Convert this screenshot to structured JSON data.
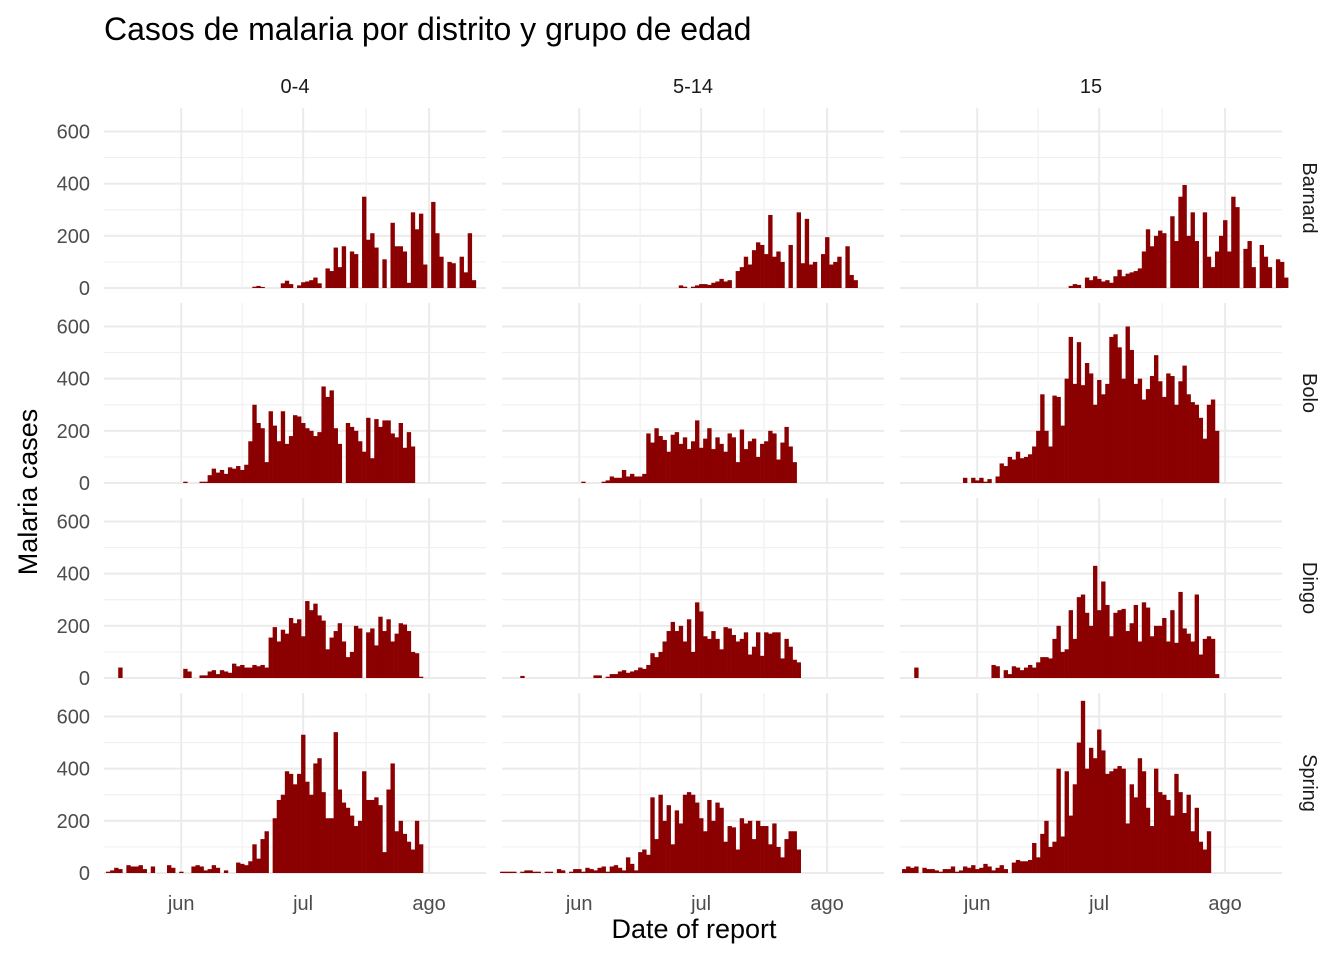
{
  "chart_data": {
    "type": "bar",
    "title": "Casos de malaria por distrito y grupo de edad",
    "xlabel": "Date of report",
    "ylabel": "Malaria cases",
    "bar_color": "#8B0000",
    "grid": true,
    "facet_columns": [
      "0-4",
      "5-14",
      "15"
    ],
    "facet_rows": [
      "Barnard",
      "Bolo",
      "Dingo",
      "Spring"
    ],
    "x_ticks": [
      {
        "label": "jun",
        "day": 17
      },
      {
        "label": "jul",
        "day": 47
      },
      {
        "label": "ago",
        "day": 78
      }
    ],
    "x_range_days": [
      -2,
      92
    ],
    "x_origin_date": "2020-05-15",
    "y_ticks": [
      0,
      200,
      400,
      600
    ],
    "ylim": [
      0,
      690
    ],
    "panels": {
      "Barnard": {
        "0-4": {
          "start": 35,
          "values": [
            5,
            8,
            4,
            0,
            0,
            0,
            0,
            18,
            28,
            15,
            0,
            10,
            22,
            25,
            30,
            40,
            18,
            0,
            75,
            65,
            155,
            80,
            160,
            0,
            140,
            130,
            0,
            350,
            185,
            210,
            155,
            0,
            110,
            0,
            250,
            160,
            160,
            140,
            20,
            290,
            225,
            285,
            90,
            0,
            330,
            210,
            120,
            0,
            100,
            95,
            0,
            120,
            60,
            210,
            30
          ]
        },
        "5-14": {
          "start": 42,
          "values": [
            10,
            5,
            0,
            5,
            10,
            15,
            15,
            12,
            20,
            25,
            35,
            25,
            30,
            0,
            65,
            80,
            120,
            90,
            145,
            175,
            165,
            130,
            280,
            120,
            140,
            100,
            0,
            165,
            0,
            290,
            95,
            265,
            90,
            100,
            0,
            130,
            195,
            90,
            100,
            120,
            0,
            160,
            50,
            30
          ]
        },
        "15": {
          "start": 40,
          "values": [
            8,
            15,
            12,
            0,
            40,
            30,
            45,
            35,
            25,
            30,
            20,
            45,
            70,
            45,
            55,
            60,
            65,
            75,
            140,
            225,
            160,
            200,
            220,
            210,
            0,
            275,
            180,
            350,
            395,
            200,
            290,
            180,
            0,
            290,
            120,
            80,
            140,
            200,
            260,
            140,
            350,
            310,
            0,
            150,
            180,
            80,
            0,
            165,
            120,
            80,
            0,
            110,
            100,
            40
          ]
        }
      },
      "Bolo": {
        "0-4": {
          "start": 18,
          "values": [
            5,
            0,
            0,
            0,
            5,
            5,
            30,
            55,
            40,
            50,
            35,
            60,
            55,
            65,
            50,
            70,
            160,
            300,
            230,
            210,
            80,
            275,
            220,
            160,
            275,
            150,
            180,
            260,
            255,
            230,
            210,
            200,
            180,
            195,
            370,
            330,
            355,
            210,
            150,
            0,
            230,
            215,
            200,
            160,
            120,
            250,
            95,
            245,
            215,
            240,
            240,
            190,
            175,
            230,
            135,
            195,
            140
          ]
        },
        "5-14": {
          "start": 18,
          "values": [
            5,
            0,
            0,
            0,
            0,
            5,
            10,
            25,
            20,
            20,
            50,
            25,
            35,
            25,
            25,
            35,
            190,
            155,
            210,
            180,
            165,
            120,
            185,
            195,
            150,
            175,
            130,
            160,
            240,
            135,
            170,
            210,
            130,
            175,
            150,
            120,
            190,
            175,
            80,
            205,
            130,
            160,
            170,
            100,
            150,
            160,
            200,
            190,
            90,
            155,
            215,
            140,
            80
          ]
        },
        "15": {
          "start": 14,
          "values": [
            20,
            0,
            20,
            10,
            20,
            5,
            15,
            0,
            25,
            75,
            65,
            100,
            90,
            120,
            95,
            100,
            110,
            140,
            200,
            340,
            200,
            140,
            335,
            330,
            220,
            400,
            560,
            380,
            540,
            375,
            460,
            420,
            300,
            395,
            340,
            380,
            560,
            570,
            520,
            400,
            600,
            510,
            380,
            400,
            320,
            360,
            410,
            490,
            390,
            330,
            420,
            410,
            300,
            390,
            450,
            340,
            310,
            300,
            250,
            170,
            300,
            320,
            200
          ]
        }
      },
      "Dingo": {
        "0-4": {
          "start": 2,
          "values": [
            40,
            0,
            0,
            0,
            0,
            0,
            0,
            0,
            0,
            0,
            0,
            0,
            0,
            0,
            0,
            0,
            35,
            25,
            0,
            0,
            10,
            10,
            25,
            30,
            15,
            30,
            25,
            20,
            55,
            45,
            50,
            40,
            40,
            50,
            45,
            50,
            40,
            155,
            195,
            140,
            185,
            170,
            230,
            210,
            225,
            160,
            295,
            260,
            285,
            240,
            220,
            110,
            155,
            180,
            210,
            140,
            80,
            100,
            200,
            190,
            0,
            175,
            190,
            125,
            235,
            180,
            225,
            140,
            170,
            210,
            205,
            180,
            100,
            95,
            5
          ]
        },
        "5-14": {
          "start": 3,
          "values": [
            8,
            0,
            0,
            0,
            0,
            0,
            0,
            0,
            0,
            0,
            0,
            0,
            0,
            0,
            0,
            0,
            0,
            0,
            10,
            10,
            0,
            5,
            15,
            15,
            25,
            30,
            20,
            25,
            30,
            40,
            35,
            50,
            95,
            80,
            100,
            140,
            180,
            215,
            180,
            200,
            140,
            225,
            100,
            290,
            255,
            160,
            150,
            180,
            150,
            110,
            195,
            190,
            165,
            140,
            150,
            175,
            90,
            120,
            175,
            85,
            175,
            170,
            175,
            175,
            75,
            150,
            120,
            70,
            60,
            0
          ]
        },
        "15": {
          "start": 2,
          "values": [
            40,
            0,
            0,
            0,
            0,
            0,
            0,
            0,
            0,
            0,
            0,
            0,
            0,
            0,
            0,
            0,
            0,
            0,
            0,
            50,
            45,
            0,
            30,
            15,
            45,
            40,
            30,
            40,
            50,
            40,
            60,
            80,
            80,
            75,
            150,
            200,
            100,
            110,
            260,
            150,
            310,
            320,
            250,
            200,
            430,
            260,
            370,
            280,
            160,
            250,
            260,
            265,
            180,
            210,
            280,
            140,
            290,
            270,
            160,
            200,
            200,
            230,
            140,
            260,
            135,
            330,
            190,
            170,
            140,
            320,
            90,
            150,
            160,
            150,
            15
          ]
        }
      },
      "Spring": {
        "0-4": {
          "start": -1,
          "values": [
            5,
            10,
            20,
            15,
            0,
            30,
            25,
            25,
            30,
            15,
            0,
            25,
            0,
            0,
            0,
            30,
            20,
            0,
            5,
            0,
            0,
            25,
            30,
            25,
            10,
            15,
            30,
            20,
            0,
            10,
            0,
            0,
            40,
            35,
            30,
            45,
            110,
            55,
            130,
            160,
            0,
            210,
            280,
            300,
            390,
            380,
            340,
            380,
            530,
            350,
            300,
            420,
            440,
            310,
            210,
            210,
            540,
            320,
            270,
            250,
            220,
            180,
            200,
            390,
            280,
            280,
            290,
            260,
            80,
            320,
            420,
            160,
            200,
            150,
            120,
            90,
            200,
            110
          ]
        },
        "5-14": {
          "start": -2,
          "values": [
            5,
            5,
            5,
            5,
            0,
            5,
            10,
            10,
            5,
            5,
            0,
            5,
            5,
            0,
            15,
            10,
            0,
            5,
            15,
            15,
            5,
            20,
            15,
            10,
            20,
            25,
            5,
            25,
            30,
            20,
            10,
            60,
            35,
            10,
            80,
            90,
            70,
            290,
            130,
            300,
            200,
            260,
            110,
            240,
            190,
            300,
            310,
            300,
            270,
            210,
            160,
            280,
            200,
            270,
            250,
            120,
            180,
            175,
            90,
            210,
            190,
            200,
            130,
            200,
            180,
            180,
            110,
            190,
            100,
            60,
            130,
            160,
            160,
            90
          ]
        },
        "15": {
          "start": -1,
          "values": [
            15,
            25,
            20,
            25,
            0,
            20,
            15,
            15,
            10,
            5,
            15,
            15,
            25,
            5,
            10,
            25,
            20,
            30,
            15,
            20,
            35,
            25,
            10,
            20,
            30,
            15,
            0,
            40,
            50,
            45,
            45,
            50,
            115,
            60,
            150,
            200,
            100,
            120,
            400,
            140,
            390,
            220,
            340,
            500,
            660,
            400,
            480,
            440,
            550,
            470,
            380,
            390,
            400,
            410,
            400,
            190,
            340,
            290,
            440,
            390,
            250,
            180,
            400,
            310,
            300,
            280,
            220,
            380,
            310,
            230,
            300,
            160,
            250,
            120,
            90,
            160
          ]
        }
      }
    }
  }
}
